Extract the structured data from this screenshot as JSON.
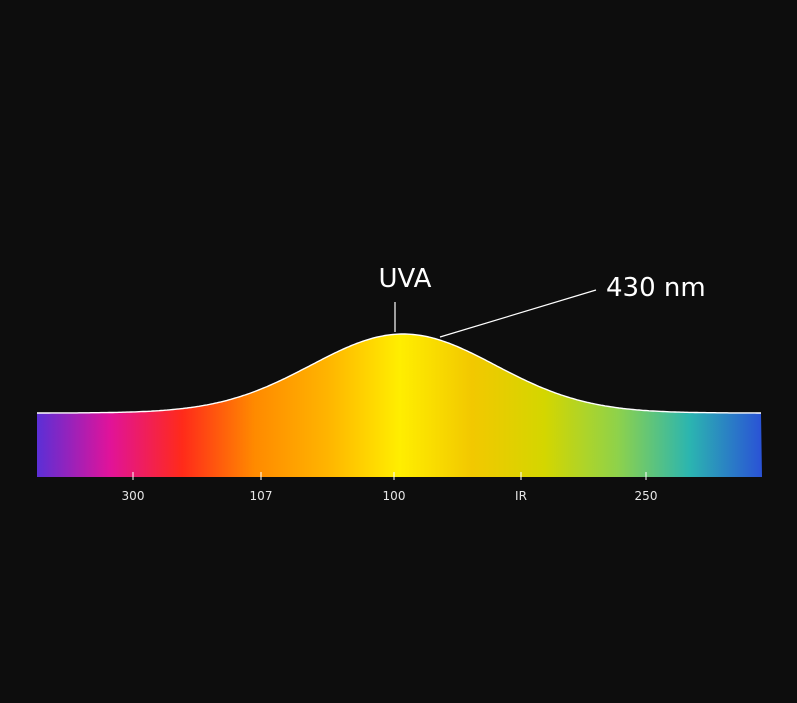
{
  "chart_data": {
    "type": "area",
    "title": "",
    "xlabel": "",
    "ylabel": "",
    "x_tick_labels": [
      "300",
      "107",
      "100",
      "IR",
      "250"
    ],
    "curve": {
      "peak_label": "UVA",
      "peak_position": 0.5,
      "baseline": 0.0,
      "peak_value": 1.0
    },
    "annotations": [
      {
        "text": "UVA",
        "target": "peak"
      },
      {
        "text": "430 nm",
        "target": "right-shoulder"
      }
    ],
    "colors": {
      "background": "#0d0d0d",
      "outline": "#ffffff",
      "gradient": [
        "#5b2fd6",
        "#e0139a",
        "#ff2a1a",
        "#ff8a00",
        "#ffb400",
        "#ffee00",
        "#f2c800",
        "#d4d600",
        "#8fd24a",
        "#2bb5b0",
        "#2a52d6"
      ]
    },
    "grid": false,
    "legend": "none"
  }
}
